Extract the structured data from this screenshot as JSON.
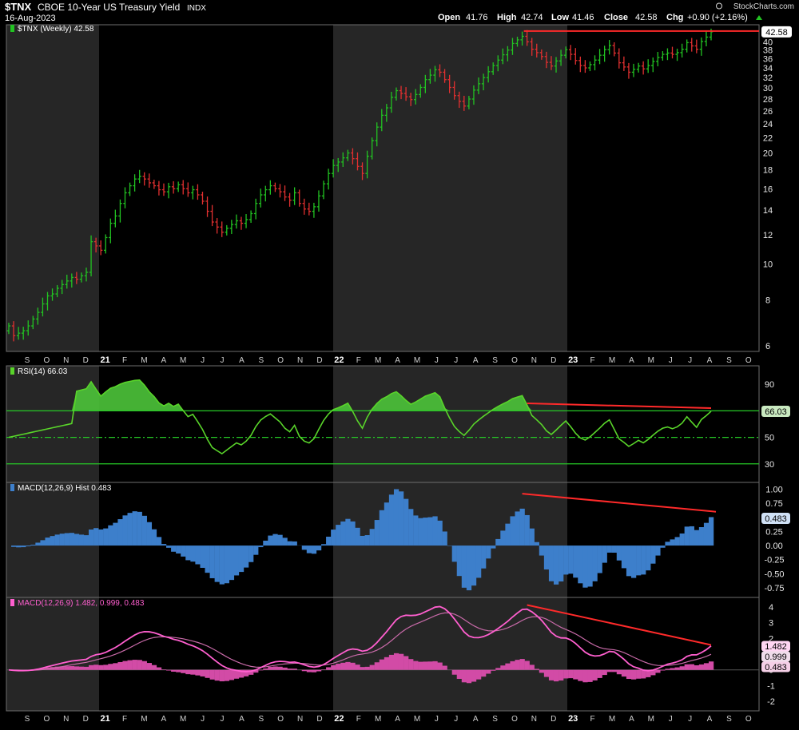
{
  "header": {
    "symbol": "$TNX",
    "name": "CBOE 10-Year US Treasury Yield",
    "exchange": "INDX",
    "date": "16-Aug-2023",
    "brand": "StockCharts.com",
    "quote": {
      "open_label": "Open",
      "open": "41.76",
      "high_label": "High",
      "high": "42.74",
      "low_label": "Low",
      "low": "41.46",
      "close_label": "Close",
      "close": "42.58",
      "chg_label": "Chg",
      "chg": "+0.90 (+2.16%)"
    }
  },
  "colors": {
    "up": "#22c322",
    "down": "#e23030",
    "rsi_line": "#59d42a",
    "rsi_fill": "#4cc43a",
    "rsi_band": "#26c926",
    "macd_hist": "#3d7fcb",
    "macd_line": "#ff5fcf",
    "macd_signal": "#c86aa8",
    "macd_hist2": "#d24ba6",
    "trendline": "#ff2a2a",
    "shade": "#262626"
  },
  "months": [
    "S",
    "O",
    "N",
    "D",
    "21",
    "F",
    "M",
    "A",
    "M",
    "J",
    "J",
    "A",
    "S",
    "O",
    "N",
    "D",
    "22",
    "F",
    "M",
    "A",
    "M",
    "J",
    "J",
    "A",
    "S",
    "O",
    "N",
    "D",
    "23",
    "F",
    "M",
    "A",
    "M",
    "J",
    "J",
    "A",
    "S",
    "O"
  ],
  "chart_data": [
    {
      "type": "ohlc",
      "panel": "price",
      "legend": "$TNX (Weekly) 42.58",
      "scale": "log",
      "ylim": [
        5.8,
        44.5
      ],
      "yticks": [
        6,
        8,
        10,
        12,
        14,
        16,
        18,
        20,
        22,
        24,
        26,
        28,
        30,
        32,
        34,
        36,
        38,
        40,
        42
      ],
      "last_value": "42.58",
      "resistance": 42.8,
      "closes": [
        6.8,
        6.4,
        6.5,
        6.6,
        6.8,
        7.1,
        7.4,
        7.8,
        8.2,
        8.3,
        8.6,
        8.8,
        9.0,
        9.2,
        9.1,
        9.3,
        9.5,
        11.5,
        11.2,
        10.9,
        11.8,
        12.9,
        13.5,
        14.6,
        15.6,
        16.3,
        17.0,
        17.3,
        17.0,
        16.6,
        16.3,
        15.9,
        15.7,
        16.2,
        16.0,
        16.4,
        16.0,
        15.6,
        15.9,
        15.4,
        14.8,
        13.9,
        13.0,
        12.6,
        12.2,
        12.5,
        12.8,
        13.1,
        12.9,
        13.2,
        13.7,
        14.6,
        15.4,
        15.9,
        16.3,
        16.0,
        15.7,
        15.2,
        14.9,
        15.6,
        14.6,
        14.1,
        13.9,
        14.3,
        15.3,
        16.5,
        17.6,
        18.5,
        18.9,
        19.4,
        20.0,
        19.3,
        18.4,
        17.6,
        19.6,
        21.6,
        23.5,
        25.3,
        26.5,
        28.3,
        29.5,
        29.0,
        28.4,
        27.9,
        28.8,
        30.1,
        31.6,
        32.5,
        33.6,
        33.1,
        31.6,
        30.1,
        28.6,
        27.6,
        26.8,
        28.0,
        29.6,
        30.8,
        32.0,
        33.2,
        34.5,
        35.7,
        36.9,
        38.0,
        39.6,
        40.5,
        41.4,
        40.0,
        38.2,
        37.4,
        36.5,
        35.2,
        34.4,
        35.5,
        36.8,
        38.1,
        37.0,
        35.6,
        34.5,
        34.0,
        34.7,
        35.7,
        36.8,
        38.1,
        39.1,
        37.3,
        35.1,
        34.2,
        33.1,
        33.7,
        34.4,
        33.8,
        34.5,
        35.4,
        36.3,
        37.0,
        37.3,
        37.0,
        37.4,
        38.2,
        39.8,
        39.0,
        38.2,
        40.1,
        41.2,
        42.58
      ]
    },
    {
      "type": "line",
      "panel": "rsi",
      "legend": "RSI(14) 66.03",
      "ylim": [
        16,
        104
      ],
      "yticks": [
        30,
        50,
        70,
        90
      ],
      "bands": [
        30,
        50,
        70
      ],
      "last_value": "66.03"
    },
    {
      "type": "bar",
      "panel": "macd_hist",
      "legend": "MACD(12,26,9) Hist 0.483",
      "ylim": [
        -0.92,
        1.12
      ],
      "yticks": [
        -0.75,
        -0.5,
        -0.25,
        0.0,
        0.25,
        0.5,
        0.75,
        1.0
      ],
      "tick_labels": [
        "-0.75",
        "-0.50",
        "-0.25",
        "0.00",
        "0.25",
        "0.50",
        "0.75",
        "1.00"
      ],
      "last_value": "0.483"
    },
    {
      "type": "line",
      "panel": "macd",
      "legend": "MACD(12,26,9) 1.482, 0.999, 0.483",
      "ylim": [
        -2.6,
        4.6
      ],
      "yticks": [
        -2,
        -1,
        0,
        1,
        2,
        3,
        4
      ],
      "last_values": [
        "1.482",
        "0.999",
        "0.483"
      ]
    }
  ]
}
